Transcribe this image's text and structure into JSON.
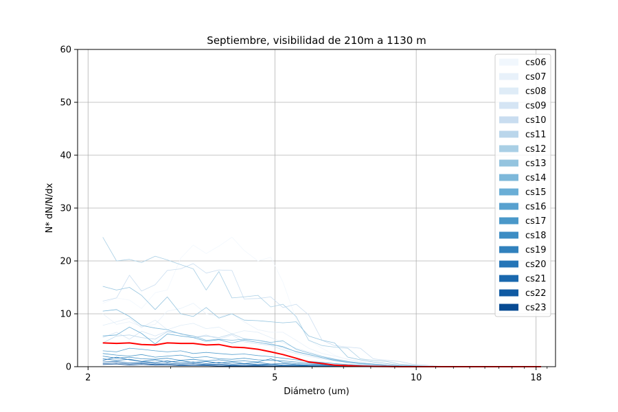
{
  "chart_data": {
    "type": "line",
    "title": "Septiembre, visibilidad de 210m a 1130 m",
    "xlabel": "Diámetro (um)",
    "ylabel": "N* dN/N/dx",
    "x_scale": "log",
    "xlim": [
      1.9,
      19.8
    ],
    "ylim": [
      0,
      60
    ],
    "x_ticks": [
      2,
      5,
      10,
      18
    ],
    "y_ticks": [
      0,
      10,
      20,
      30,
      40,
      50,
      60
    ],
    "grid": true,
    "legend_position": "top-right",
    "x": [
      2.15,
      2.3,
      2.45,
      2.6,
      2.78,
      2.95,
      3.15,
      3.35,
      3.57,
      3.8,
      4.05,
      4.3,
      4.6,
      4.9,
      5.2,
      5.55,
      5.9,
      6.3,
      6.7,
      7.15,
      7.6,
      8.1,
      8.65,
      9.2,
      9.8,
      10.45,
      11.1,
      11.85,
      12.6,
      13.45,
      14.3,
      15.25,
      16.25,
      17.3,
      18.45
    ],
    "series": [
      {
        "name": "cs06",
        "color": "#f1f7fd",
        "values": [
          12,
          13,
          12.6,
          11,
          14,
          14.5,
          20.5,
          23,
          21.4,
          22.8,
          24.5,
          22,
          20,
          20.7,
          16,
          9,
          5,
          3.5,
          2.2,
          1.3,
          0.9,
          0.5,
          0.3,
          0.2,
          0.1,
          0.1,
          0,
          0,
          0,
          0,
          0,
          0,
          0,
          0,
          0
        ]
      },
      {
        "name": "cs07",
        "color": "#e8f1fa",
        "values": [
          10,
          8,
          8.5,
          7.6,
          8,
          10.5,
          11,
          12,
          10,
          9.5,
          10,
          8.5,
          7,
          6.5,
          6.5,
          5,
          3.5,
          2.5,
          2,
          1.4,
          1,
          0.6,
          0.4,
          0.2,
          0.1,
          0.1,
          0,
          0,
          0,
          0,
          0,
          0,
          0,
          0,
          0
        ]
      },
      {
        "name": "cs08",
        "color": "#dfecf7",
        "values": [
          7.8,
          8.5,
          9.2,
          7.4,
          8.8,
          7,
          7.8,
          8.2,
          7.2,
          7.5,
          6.2,
          6.8,
          6.5,
          5.5,
          4.5,
          3.5,
          2.8,
          2,
          1.5,
          1,
          0.7,
          0.5,
          0.3,
          0.2,
          0.1,
          0,
          0,
          0,
          0,
          0,
          0,
          0,
          0,
          0,
          0
        ]
      },
      {
        "name": "cs09",
        "color": "#d5e5f4",
        "values": [
          5.5,
          6.5,
          5.2,
          6.7,
          5.8,
          6.7,
          6.3,
          5.5,
          6,
          5.2,
          6,
          4.7,
          4.3,
          4,
          3.2,
          2.5,
          2,
          1.5,
          1.1,
          0.8,
          0.5,
          0.3,
          0.2,
          0.1,
          0.1,
          0,
          0,
          0,
          0,
          0,
          0,
          0,
          0,
          0,
          0
        ]
      },
      {
        "name": "cs10",
        "color": "#c9ddf0",
        "values": [
          12.4,
          13,
          17.3,
          14.3,
          15.5,
          18.2,
          18.5,
          19.5,
          17.7,
          18.3,
          18.2,
          12.8,
          12.9,
          13.2,
          11.2,
          11.8,
          9.8,
          5,
          4,
          3.7,
          3.5,
          1.5,
          1.2,
          1,
          0.5,
          0.3,
          0.1,
          0,
          0,
          0,
          0,
          0,
          0,
          0,
          0
        ]
      },
      {
        "name": "cs11",
        "color": "#bad6eb",
        "values": [
          4.5,
          5.8,
          6,
          5.5,
          5.2,
          6.6,
          6.3,
          5.5,
          5.8,
          5.5,
          6.2,
          5.3,
          5,
          4.4,
          3.6,
          2.9,
          2.3,
          1.7,
          1.3,
          0.9,
          0.6,
          0.4,
          0.2,
          0.1,
          0.1,
          0,
          0,
          0,
          0,
          0,
          0,
          0,
          0,
          0,
          0
        ]
      },
      {
        "name": "cs12",
        "color": "#a9cfe5",
        "values": [
          24.5,
          20,
          20.3,
          19.7,
          20.9,
          20.2,
          19.3,
          18.5,
          14.5,
          18,
          13,
          13.2,
          13.5,
          11.3,
          11.8,
          9.5,
          5,
          4,
          3.7,
          3.5,
          1.5,
          1.2,
          1,
          0.5,
          0.3,
          0.1,
          0,
          0,
          0,
          0,
          0,
          0,
          0,
          0,
          0
        ]
      },
      {
        "name": "cs13",
        "color": "#94c4df",
        "values": [
          15.2,
          14.5,
          15,
          13.5,
          10.8,
          13.2,
          10,
          9.5,
          11.2,
          9.2,
          10,
          8.8,
          8.7,
          8.5,
          8.3,
          8.5,
          5.8,
          5,
          4.5,
          1.8,
          1.3,
          0.9,
          0.6,
          0.3,
          0.2,
          0.1,
          0,
          0,
          0,
          0,
          0,
          0,
          0,
          0,
          0
        ]
      },
      {
        "name": "cs14",
        "color": "#7db8da",
        "values": [
          10.5,
          10.8,
          9.5,
          7.8,
          7.3,
          7,
          6.2,
          5.8,
          5,
          5.2,
          5,
          5.2,
          5,
          4.6,
          4.9,
          3.3,
          2.6,
          1.9,
          1.4,
          1,
          0.7,
          0.5,
          0.3,
          0.2,
          0.1,
          0,
          0,
          0,
          0,
          0,
          0,
          0,
          0,
          0,
          0
        ]
      },
      {
        "name": "cs15",
        "color": "#6aaed6",
        "values": [
          5.8,
          6,
          7.5,
          6.3,
          4.3,
          6.2,
          5.8,
          5.5,
          4.8,
          5.1,
          4.5,
          5,
          4.6,
          4.2,
          3.8,
          2.8,
          2.3,
          1.7,
          1.2,
          0.8,
          0.6,
          0.4,
          0.2,
          0.1,
          0.1,
          0,
          0,
          0,
          0,
          0,
          0,
          0,
          0,
          0,
          0
        ]
      },
      {
        "name": "cs16",
        "color": "#58a1cf",
        "values": [
          3,
          2.8,
          3.5,
          3.3,
          3,
          2.8,
          3,
          2.5,
          2.7,
          2.5,
          2.3,
          2.4,
          2.1,
          1.9,
          1.6,
          1.3,
          1,
          0.8,
          0.6,
          0.4,
          0.3,
          0.2,
          0.1,
          0.1,
          0,
          0,
          0,
          0,
          0,
          0,
          0,
          0,
          0,
          0,
          0
        ]
      },
      {
        "name": "cs17",
        "color": "#4a98c9",
        "values": [
          2.5,
          2.2,
          2,
          2.3,
          1.8,
          2,
          2.2,
          1.7,
          1.9,
          1.5,
          1.4,
          1.6,
          1.3,
          1.2,
          1.1,
          0.9,
          0.7,
          0.5,
          0.4,
          0.3,
          0.2,
          0.1,
          0.1,
          0,
          0,
          0,
          0,
          0,
          0,
          0,
          0,
          0,
          0,
          0,
          0
        ]
      },
      {
        "name": "cs18",
        "color": "#3d8dc4",
        "values": [
          2,
          1.6,
          1.8,
          1.5,
          1.4,
          1.6,
          1.2,
          1.4,
          1.1,
          1.3,
          1,
          1.1,
          0.9,
          1.5,
          0.8,
          0.6,
          0.5,
          0.4,
          0.3,
          0.2,
          0.1,
          0.1,
          0,
          0,
          0,
          0,
          0,
          0,
          0,
          0,
          0,
          0,
          0,
          0,
          0
        ]
      },
      {
        "name": "cs19",
        "color": "#3181bd",
        "values": [
          1.5,
          1.2,
          1.4,
          1,
          1.3,
          0.9,
          1.1,
          0.8,
          1,
          0.7,
          0.9,
          0.6,
          0.8,
          0.5,
          0.6,
          0.4,
          0.3,
          0.3,
          0.2,
          0.1,
          0.1,
          0,
          0,
          0,
          0,
          0,
          0,
          0,
          0,
          0,
          0,
          0,
          0,
          0,
          0
        ]
      },
      {
        "name": "cs20",
        "color": "#2575b7",
        "values": [
          1.2,
          1.8,
          1.3,
          1,
          0.8,
          1.1,
          0.7,
          0.9,
          0.6,
          0.8,
          0.5,
          0.6,
          0.4,
          0.5,
          0.3,
          0.3,
          0.2,
          0.2,
          0.1,
          0.1,
          0,
          0,
          0,
          0,
          0,
          0,
          0,
          0,
          0,
          0,
          0,
          0,
          0,
          0,
          0
        ]
      },
      {
        "name": "cs21",
        "color": "#1a68ae",
        "values": [
          0.9,
          1,
          0.7,
          0.8,
          0.6,
          0.7,
          0.5,
          0.6,
          0.4,
          0.5,
          0.3,
          0.4,
          0.3,
          0.3,
          0.2,
          0.2,
          0.1,
          0.1,
          0.1,
          0,
          0,
          0,
          0,
          0,
          0,
          0,
          0,
          0,
          0,
          0,
          0,
          0,
          0,
          0,
          0
        ]
      },
      {
        "name": "cs22",
        "color": "#0f5aa3",
        "values": [
          0.6,
          0.7,
          0.5,
          0.6,
          0.4,
          0.5,
          0.3,
          0.4,
          0.3,
          0.3,
          0.2,
          0.2,
          0.2,
          0.1,
          0.1,
          0.1,
          0.1,
          0,
          0,
          0,
          0,
          0,
          0,
          0,
          0,
          0,
          0,
          0,
          0,
          0,
          0,
          0,
          0,
          0,
          0
        ]
      },
      {
        "name": "cs23",
        "color": "#084b93",
        "values": [
          0.4,
          0.5,
          0.3,
          0.4,
          0.3,
          0.3,
          0.2,
          0.2,
          0.2,
          0.1,
          0.1,
          0.1,
          0.1,
          0.1,
          0,
          0,
          0,
          0,
          0,
          0,
          0,
          0,
          0,
          0,
          0,
          0,
          0,
          0,
          0,
          0,
          0,
          0,
          0,
          0,
          0
        ]
      }
    ],
    "mean_line": {
      "color": "#ff0000",
      "values": [
        4.5,
        4.4,
        4.5,
        4.2,
        4.1,
        4.5,
        4.4,
        4.4,
        4.1,
        4.2,
        3.7,
        3.6,
        3.3,
        2.8,
        2.3,
        1.6,
        0.9,
        0.6,
        0.3,
        0.2,
        0.1,
        0.05,
        0.02,
        0,
        0,
        0,
        0,
        0,
        0,
        0,
        0,
        0,
        0,
        0,
        0
      ]
    }
  }
}
